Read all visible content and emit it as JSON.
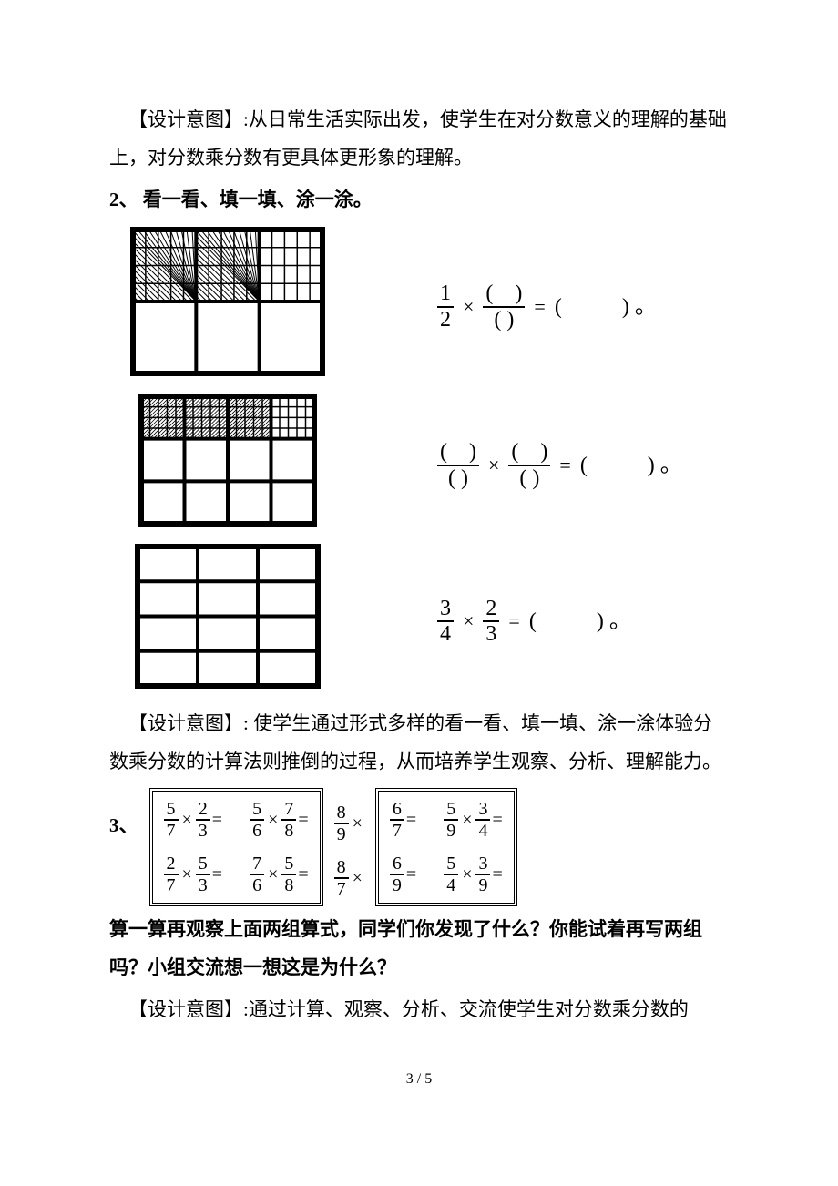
{
  "p_intent1": "【设计意图】:从日常生活实际出发，使学生在对分数意义的理解的基础上，对分数乘分数有更具体更形象的理解。",
  "sec2_heading": "2、  看一看、填一填、涂一涂。",
  "eq1": {
    "left": {
      "num": "1",
      "den": "2"
    },
    "right": {
      "num": "( )",
      "den": "( )"
    },
    "result": "(  )。"
  },
  "eq2": {
    "left": {
      "num": "( )",
      "den": "( )"
    },
    "right": {
      "num": "( )",
      "den": "( )"
    },
    "result": "(  )。"
  },
  "eq3": {
    "left": {
      "num": "3",
      "den": "4"
    },
    "right": {
      "num": "2",
      "den": "3"
    },
    "result": "(  )。"
  },
  "p_intent2": "【设计意图】: 使学生通过形式多样的看一看、填一填、涂一涂体验分数乘分数的计算法则推倒的过程，从而培养学生观察、分析、理解能力。",
  "sec3_label": "3、",
  "box1": {
    "r1": [
      {
        "a": {
          "n": "5",
          "d": "7"
        },
        "b": {
          "n": "2",
          "d": "3"
        }
      },
      {
        "a": {
          "n": "5",
          "d": "6"
        },
        "b": {
          "n": "7",
          "d": "8"
        }
      }
    ],
    "r2": [
      {
        "a": {
          "n": "2",
          "d": "7"
        },
        "b": {
          "n": "5",
          "d": "3"
        }
      },
      {
        "a": {
          "n": "7",
          "d": "6"
        },
        "b": {
          "n": "5",
          "d": "8"
        }
      }
    ]
  },
  "bridge1": {
    "a": {
      "n": "8",
      "d": "9"
    }
  },
  "box2": {
    "r1": [
      {
        "a": {
          "n": "6",
          "d": "7"
        }
      },
      {
        "a": {
          "n": "5",
          "d": "9"
        },
        "b": {
          "n": "3",
          "d": "4"
        }
      }
    ],
    "r2": [
      {
        "a": {
          "n": "6",
          "d": "9"
        }
      },
      {
        "a": {
          "n": "5",
          "d": "4"
        },
        "b": {
          "n": "3",
          "d": "9"
        }
      }
    ]
  },
  "bridge2": {
    "a": {
      "n": "8",
      "d": "7"
    }
  },
  "q_after_boxes": "算一算再观察上面两组算式，同学们你发现了什么？你能试着再写两组吗？小组交流想一想这是为什么？",
  "p_intent3": "【设计意图】:通过计算、观察、分析、交流使学生对分数乘分数的",
  "footer": "3 / 5",
  "diagrams": {
    "d1": {
      "outer_w": 220,
      "outer_h": 170,
      "rows": 2,
      "cols": 3,
      "top_sub_rows": 4,
      "top_sub_cols": 5,
      "shade_cells": 2
    },
    "d2": {
      "outer_w": 200,
      "outer_h": 150,
      "rows": 3,
      "cols": 4,
      "top_sub_rows": 4,
      "top_sub_cols": 5,
      "shade_cells": 3
    },
    "d3": {
      "outer_w": 210,
      "outer_h": 165,
      "rows": 4,
      "cols": 3
    },
    "stroke_thick": 6,
    "stroke_mid": 4,
    "stroke_thin": 1.5,
    "color": "#000000"
  }
}
